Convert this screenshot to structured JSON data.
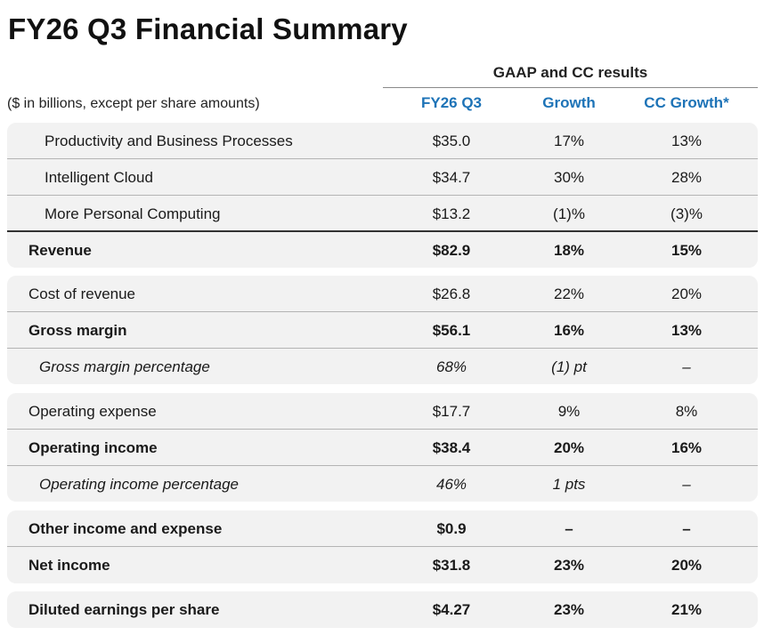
{
  "title": "FY26 Q3 Financial Summary",
  "group_header": "GAAP and CC results",
  "units_note": "($ in billions, except per share amounts)",
  "columns": [
    "FY26 Q3",
    "Growth",
    "CC Growth*"
  ],
  "accent_color": "#1d73b7",
  "rows": [
    {
      "label": "Productivity and Business Processes",
      "value": "$35.0",
      "growth": "17%",
      "cc_growth": "13%"
    },
    {
      "label": "Intelligent Cloud",
      "value": "$34.7",
      "growth": "30%",
      "cc_growth": "28%"
    },
    {
      "label": "More Personal Computing",
      "value": "$13.2",
      "growth": "(1)%",
      "cc_growth": "(3)%"
    },
    {
      "label": "Revenue",
      "value": "$82.9",
      "growth": "18%",
      "cc_growth": "15%"
    },
    {
      "label": "Cost of revenue",
      "value": "$26.8",
      "growth": "22%",
      "cc_growth": "20%"
    },
    {
      "label": "Gross margin",
      "value": "$56.1",
      "growth": "16%",
      "cc_growth": "13%"
    },
    {
      "label": "Gross margin percentage",
      "value": "68%",
      "growth": "(1) pt",
      "cc_growth": "–"
    },
    {
      "label": "Operating expense",
      "value": "$17.7",
      "growth": "9%",
      "cc_growth": "8%"
    },
    {
      "label": "Operating income",
      "value": "$38.4",
      "growth": "20%",
      "cc_growth": "16%"
    },
    {
      "label": "Operating income percentage",
      "value": "46%",
      "growth": "1 pts",
      "cc_growth": "–"
    },
    {
      "label": "Other income and expense",
      "value": "$0.9",
      "growth": "–",
      "cc_growth": "–"
    },
    {
      "label": "Net income",
      "value": "$31.8",
      "growth": "23%",
      "cc_growth": "20%"
    },
    {
      "label": "Diluted earnings per share",
      "value": "$4.27",
      "growth": "23%",
      "cc_growth": "21%"
    }
  ]
}
